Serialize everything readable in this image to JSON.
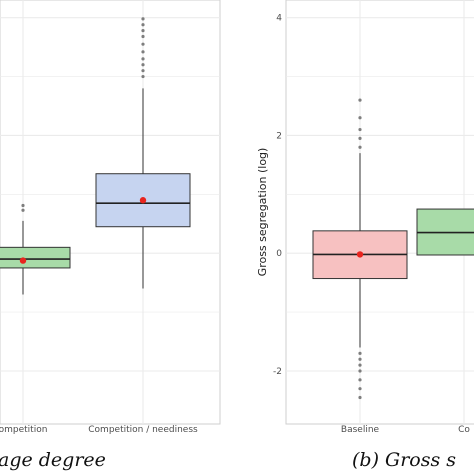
{
  "chart_data": [
    {
      "type": "box",
      "caption": "age degree",
      "categories": [
        "Competition",
        "Competition / neediness"
      ],
      "tick_labels_visible": [
        "ompetition",
        "Competition / neediness"
      ],
      "ylabel": "",
      "grid": true,
      "boxes": [
        {
          "name": "Competition",
          "fill": "#a8dba8",
          "whisker_low": -0.7,
          "q1": -0.25,
          "median": -0.1,
          "q3": 0.1,
          "whisker_high": 0.55,
          "mean": -0.125,
          "outliers": [
            0.73,
            0.81
          ]
        },
        {
          "name": "Competition / neediness",
          "fill": "#c6d4f0",
          "whisker_low": -0.6,
          "q1": 0.45,
          "median": 0.85,
          "q3": 1.35,
          "whisker_high": 2.8,
          "mean": 0.9,
          "outliers": [
            3.0,
            3.1,
            3.2,
            3.3,
            3.42,
            3.55,
            3.68,
            3.78,
            3.88,
            3.98
          ]
        }
      ]
    },
    {
      "type": "box",
      "caption": "(b) Gross s",
      "categories": [
        "Baseline",
        "Co"
      ],
      "tick_labels_visible": [
        "Baseline",
        "Co"
      ],
      "ylabel": "Gross segregation (log)",
      "ylim": [
        -2.9,
        4.3
      ],
      "yticks": [
        -2,
        0,
        2,
        4
      ],
      "grid": true,
      "boxes": [
        {
          "name": "Baseline",
          "fill": "#f7c1c1",
          "whisker_low": -1.6,
          "q1": -0.43,
          "median": -0.02,
          "q3": 0.38,
          "whisker_high": 1.7,
          "mean": -0.02,
          "outliers": [
            -2.45,
            -2.3,
            -2.15,
            -2.0,
            -1.9,
            -1.8,
            -1.7,
            1.8,
            1.95,
            2.1,
            2.3,
            2.6
          ]
        },
        {
          "name": "Co",
          "fill": "#a8dba8",
          "whisker_low": null,
          "q1": -0.03,
          "median": 0.35,
          "q3": 0.75,
          "whisker_high": null,
          "mean": null,
          "outliers": []
        }
      ]
    }
  ],
  "colors": {
    "panel": "#ffffff",
    "grid": "#ebebeb",
    "box_line": "#333333",
    "outlier": "#555555",
    "mean_dot": "#e8251f"
  }
}
